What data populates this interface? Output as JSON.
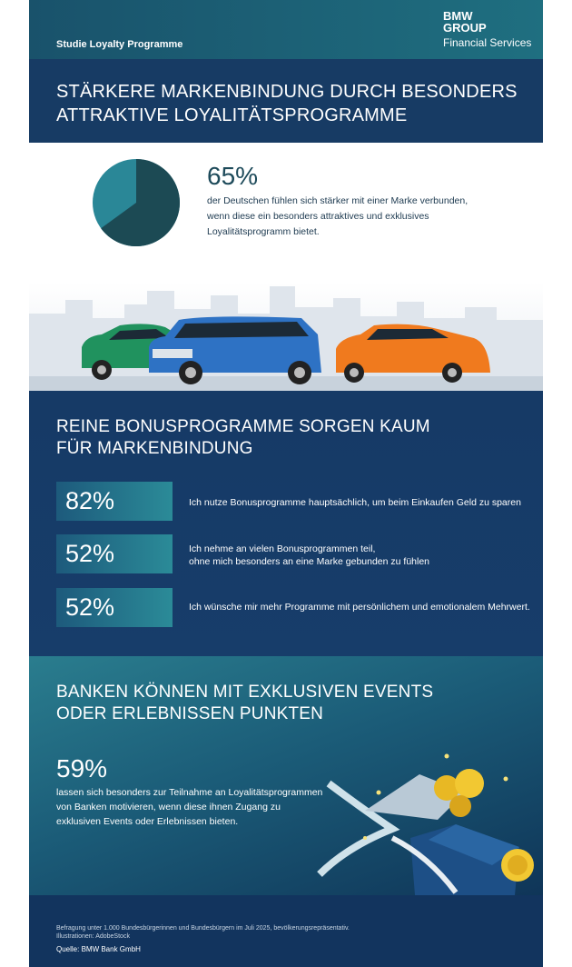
{
  "header": {
    "label": "Studie Loyalty Programme",
    "logo_line1": "BMW",
    "logo_line2": "GROUP",
    "logo_line3": "Financial Services"
  },
  "section_1": {
    "title_lines": [
      "STÄRKERE MARKENBINDUNG DURCH BESONDERS",
      "ATTRAKTIVE LOYALITÄTSPROGRAMME"
    ],
    "pie_value": 65,
    "value_label": "65%",
    "text_lines": [
      "der Deutschen fühlen sich stärker mit einer Marke verbunden,",
      "wenn diese ein besonders attraktives und exklusives",
      "Loyalitätsprogramm bietet."
    ]
  },
  "section_2": {
    "title_lines": [
      "REINE BONUSPROGRAMME SORGEN KAUM",
      "FÜR MARKENBINDUNG"
    ],
    "items": [
      {
        "value_label": "82%",
        "text_lines": [
          "Ich nutze Bonusprogramme hauptsächlich, um beim Einkaufen Geld zu sparen"
        ]
      },
      {
        "value_label": "52%",
        "text_lines": [
          "Ich nehme an vielen Bonusprogrammen teil,",
          "ohne mich besonders an eine Marke gebunden zu fühlen"
        ]
      },
      {
        "value_label": "52%",
        "text_lines": [
          "Ich wünsche mir mehr Programme mit persönlichem und emotionalem Mehrwert."
        ]
      }
    ]
  },
  "section_3": {
    "title_lines": [
      "BANKEN KÖNNEN MIT EXKLUSIVEN EVENTS",
      "ODER ERLEBNISSEN PUNKTEN"
    ],
    "value_label": "59%",
    "text_lines": [
      "lassen sich besonders zur Teilnahme an Loyalitätsprogrammen",
      "von Banken motivieren, wenn diese ihnen Zugang zu",
      "exklusiven Events oder Erlebnissen bieten."
    ]
  },
  "footer": {
    "note_lines": [
      "Befragung unter 1.000 Bundesbürgerinnen und Bundesbürgern im Juli 2025, bevölkerungsrepräsentativ.",
      "Illustrationen: AdobeStock"
    ],
    "source": "Quelle: BMW Bank GmbH"
  }
}
